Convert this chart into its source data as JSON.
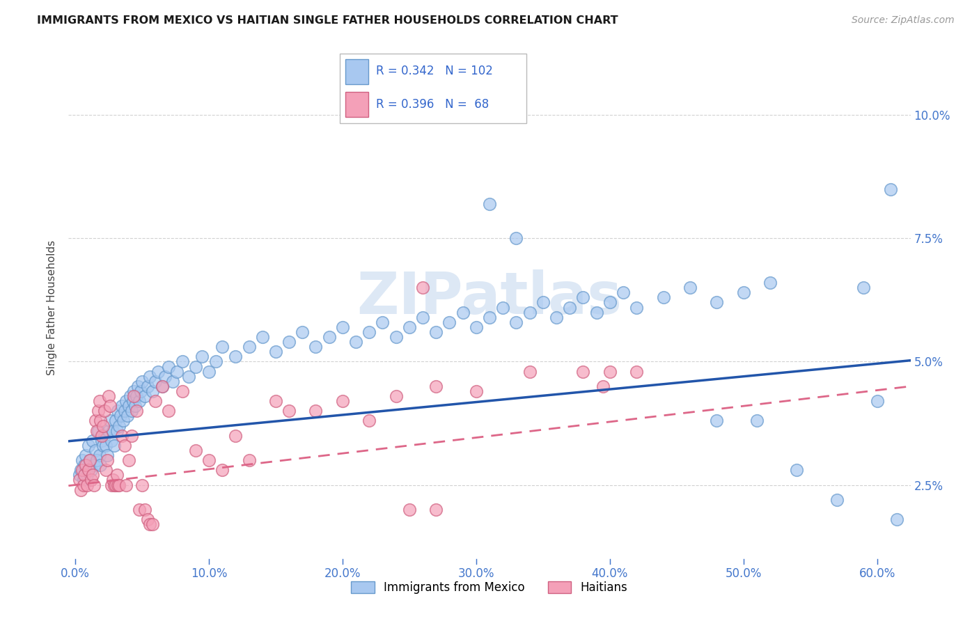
{
  "title": "IMMIGRANTS FROM MEXICO VS HAITIAN SINGLE FATHER HOUSEHOLDS CORRELATION CHART",
  "source": "Source: ZipAtlas.com",
  "xlabel_ticks": [
    "0.0%",
    "10.0%",
    "20.0%",
    "30.0%",
    "40.0%",
    "50.0%",
    "60.0%"
  ],
  "xlabel_vals": [
    0.0,
    0.1,
    0.2,
    0.3,
    0.4,
    0.5,
    0.6
  ],
  "ylabel": "Single Father Households",
  "ylabel_ticks_right": [
    "2.5%",
    "5.0%",
    "7.5%",
    "10.0%"
  ],
  "ylabel_vals_right": [
    0.025,
    0.05,
    0.075,
    0.1
  ],
  "xlim": [
    -0.005,
    0.625
  ],
  "ylim": [
    0.01,
    0.112
  ],
  "mexico_color": "#a8c8f0",
  "mexico_edge": "#6699cc",
  "haiti_color": "#f4a0b8",
  "haiti_edge": "#d06080",
  "mexico_line_color": "#2255aa",
  "haiti_line_color": "#dd6688",
  "grid_color": "#cccccc",
  "background_color": "#ffffff",
  "tick_color": "#4477cc",
  "legend_text_color": "#3366cc",
  "watermark_color": "#dde8f5",
  "mexico_line_intercept": 0.034,
  "mexico_line_slope": 0.026,
  "haiti_line_intercept": 0.025,
  "haiti_line_slope": 0.032,
  "mexico_scatter": [
    [
      0.003,
      0.027
    ],
    [
      0.004,
      0.028
    ],
    [
      0.005,
      0.03
    ],
    [
      0.006,
      0.026
    ],
    [
      0.007,
      0.029
    ],
    [
      0.008,
      0.031
    ],
    [
      0.009,
      0.027
    ],
    [
      0.01,
      0.033
    ],
    [
      0.011,
      0.03
    ],
    [
      0.012,
      0.028
    ],
    [
      0.013,
      0.034
    ],
    [
      0.014,
      0.029
    ],
    [
      0.015,
      0.032
    ],
    [
      0.016,
      0.03
    ],
    [
      0.017,
      0.036
    ],
    [
      0.018,
      0.031
    ],
    [
      0.019,
      0.029
    ],
    [
      0.02,
      0.034
    ],
    [
      0.021,
      0.033
    ],
    [
      0.022,
      0.035
    ],
    [
      0.023,
      0.033
    ],
    [
      0.024,
      0.031
    ],
    [
      0.025,
      0.036
    ],
    [
      0.026,
      0.038
    ],
    [
      0.027,
      0.034
    ],
    [
      0.028,
      0.036
    ],
    [
      0.029,
      0.033
    ],
    [
      0.03,
      0.038
    ],
    [
      0.031,
      0.036
    ],
    [
      0.032,
      0.04
    ],
    [
      0.033,
      0.037
    ],
    [
      0.034,
      0.039
    ],
    [
      0.035,
      0.041
    ],
    [
      0.036,
      0.038
    ],
    [
      0.037,
      0.04
    ],
    [
      0.038,
      0.042
    ],
    [
      0.039,
      0.039
    ],
    [
      0.04,
      0.041
    ],
    [
      0.041,
      0.043
    ],
    [
      0.042,
      0.04
    ],
    [
      0.043,
      0.042
    ],
    [
      0.044,
      0.044
    ],
    [
      0.045,
      0.041
    ],
    [
      0.046,
      0.043
    ],
    [
      0.047,
      0.045
    ],
    [
      0.048,
      0.042
    ],
    [
      0.049,
      0.044
    ],
    [
      0.05,
      0.046
    ],
    [
      0.052,
      0.043
    ],
    [
      0.054,
      0.045
    ],
    [
      0.056,
      0.047
    ],
    [
      0.058,
      0.044
    ],
    [
      0.06,
      0.046
    ],
    [
      0.062,
      0.048
    ],
    [
      0.065,
      0.045
    ],
    [
      0.067,
      0.047
    ],
    [
      0.07,
      0.049
    ],
    [
      0.073,
      0.046
    ],
    [
      0.076,
      0.048
    ],
    [
      0.08,
      0.05
    ],
    [
      0.085,
      0.047
    ],
    [
      0.09,
      0.049
    ],
    [
      0.095,
      0.051
    ],
    [
      0.1,
      0.048
    ],
    [
      0.105,
      0.05
    ],
    [
      0.11,
      0.053
    ],
    [
      0.12,
      0.051
    ],
    [
      0.13,
      0.053
    ],
    [
      0.14,
      0.055
    ],
    [
      0.15,
      0.052
    ],
    [
      0.16,
      0.054
    ],
    [
      0.17,
      0.056
    ],
    [
      0.18,
      0.053
    ],
    [
      0.19,
      0.055
    ],
    [
      0.2,
      0.057
    ],
    [
      0.21,
      0.054
    ],
    [
      0.22,
      0.056
    ],
    [
      0.23,
      0.058
    ],
    [
      0.24,
      0.055
    ],
    [
      0.25,
      0.057
    ],
    [
      0.26,
      0.059
    ],
    [
      0.27,
      0.056
    ],
    [
      0.28,
      0.058
    ],
    [
      0.29,
      0.06
    ],
    [
      0.3,
      0.057
    ],
    [
      0.31,
      0.059
    ],
    [
      0.32,
      0.061
    ],
    [
      0.33,
      0.058
    ],
    [
      0.34,
      0.06
    ],
    [
      0.35,
      0.062
    ],
    [
      0.36,
      0.059
    ],
    [
      0.37,
      0.061
    ],
    [
      0.38,
      0.063
    ],
    [
      0.39,
      0.06
    ],
    [
      0.4,
      0.062
    ],
    [
      0.41,
      0.064
    ],
    [
      0.42,
      0.061
    ],
    [
      0.44,
      0.063
    ],
    [
      0.46,
      0.065
    ],
    [
      0.48,
      0.062
    ],
    [
      0.5,
      0.064
    ],
    [
      0.52,
      0.066
    ],
    [
      0.31,
      0.082
    ],
    [
      0.33,
      0.075
    ],
    [
      0.48,
      0.038
    ],
    [
      0.51,
      0.038
    ],
    [
      0.54,
      0.028
    ],
    [
      0.57,
      0.022
    ],
    [
      0.59,
      0.065
    ],
    [
      0.6,
      0.042
    ],
    [
      0.61,
      0.085
    ],
    [
      0.615,
      0.018
    ]
  ],
  "haiti_scatter": [
    [
      0.003,
      0.026
    ],
    [
      0.004,
      0.024
    ],
    [
      0.005,
      0.028
    ],
    [
      0.006,
      0.025
    ],
    [
      0.007,
      0.027
    ],
    [
      0.008,
      0.029
    ],
    [
      0.009,
      0.025
    ],
    [
      0.01,
      0.028
    ],
    [
      0.011,
      0.03
    ],
    [
      0.012,
      0.026
    ],
    [
      0.013,
      0.027
    ],
    [
      0.014,
      0.025
    ],
    [
      0.015,
      0.038
    ],
    [
      0.016,
      0.036
    ],
    [
      0.017,
      0.04
    ],
    [
      0.018,
      0.042
    ],
    [
      0.019,
      0.038
    ],
    [
      0.02,
      0.035
    ],
    [
      0.021,
      0.037
    ],
    [
      0.022,
      0.04
    ],
    [
      0.023,
      0.028
    ],
    [
      0.024,
      0.03
    ],
    [
      0.025,
      0.043
    ],
    [
      0.026,
      0.041
    ],
    [
      0.027,
      0.025
    ],
    [
      0.028,
      0.026
    ],
    [
      0.029,
      0.025
    ],
    [
      0.03,
      0.025
    ],
    [
      0.031,
      0.027
    ],
    [
      0.032,
      0.025
    ],
    [
      0.033,
      0.025
    ],
    [
      0.035,
      0.035
    ],
    [
      0.037,
      0.033
    ],
    [
      0.038,
      0.025
    ],
    [
      0.04,
      0.03
    ],
    [
      0.042,
      0.035
    ],
    [
      0.044,
      0.043
    ],
    [
      0.046,
      0.04
    ],
    [
      0.048,
      0.02
    ],
    [
      0.05,
      0.025
    ],
    [
      0.052,
      0.02
    ],
    [
      0.054,
      0.018
    ],
    [
      0.056,
      0.017
    ],
    [
      0.058,
      0.017
    ],
    [
      0.06,
      0.042
    ],
    [
      0.065,
      0.045
    ],
    [
      0.07,
      0.04
    ],
    [
      0.08,
      0.044
    ],
    [
      0.09,
      0.032
    ],
    [
      0.1,
      0.03
    ],
    [
      0.11,
      0.028
    ],
    [
      0.12,
      0.035
    ],
    [
      0.13,
      0.03
    ],
    [
      0.15,
      0.042
    ],
    [
      0.16,
      0.04
    ],
    [
      0.18,
      0.04
    ],
    [
      0.2,
      0.042
    ],
    [
      0.22,
      0.038
    ],
    [
      0.24,
      0.043
    ],
    [
      0.26,
      0.065
    ],
    [
      0.27,
      0.045
    ],
    [
      0.3,
      0.044
    ],
    [
      0.34,
      0.048
    ],
    [
      0.38,
      0.048
    ],
    [
      0.395,
      0.045
    ],
    [
      0.4,
      0.048
    ],
    [
      0.42,
      0.048
    ],
    [
      0.25,
      0.02
    ],
    [
      0.27,
      0.02
    ]
  ]
}
